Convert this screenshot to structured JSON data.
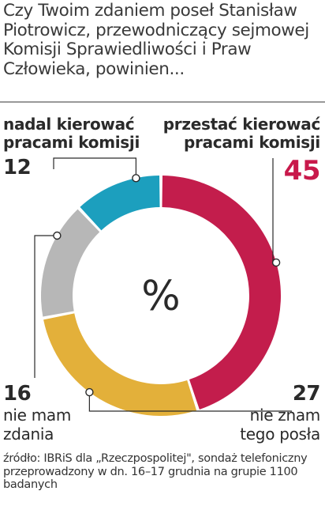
{
  "question": "Czy Twoim zdaniem poseł Stanisław Piotrowicz, przewodniczący sejmowej Komisji Sprawiedliwości i Praw Człowieka, powinien...",
  "labels": {
    "stop_line1": "przestać kierować",
    "stop_line2": "pracami komisji",
    "continue_line1": "nadal kierować",
    "continue_line2": "pracami komisji",
    "noopinion_line1": "nie mam",
    "noopinion_line2": "zdania",
    "dontknow_line1": "nie znam",
    "dontknow_line2": "tego posła"
  },
  "values_text": {
    "stop": "45",
    "continue": "12",
    "noopinion": "16",
    "dontknow": "27"
  },
  "center_symbol": "%",
  "source": "źródło: IBRiS dla „Rzeczpospolitej\", sondaż telefoniczny przeprowadzony w dn. 16–17 grudnia na grupie 1100 badanych",
  "colors": {
    "stop": "#c31d4c",
    "dontknow": "#e3b03a",
    "noopinion": "#b7b7b7",
    "continue": "#1c9fbe",
    "highlight": "#c8194b"
  },
  "chart_data": {
    "type": "pie",
    "variant": "donut",
    "unit": "%",
    "slices": [
      {
        "label": "przestać kierować pracami komisji",
        "value": 45
      },
      {
        "label": "nie znam tego posła",
        "value": 27
      },
      {
        "label": "nie mam zdania",
        "value": 16
      },
      {
        "label": "nadal kierować pracami komisji",
        "value": 12
      }
    ]
  }
}
